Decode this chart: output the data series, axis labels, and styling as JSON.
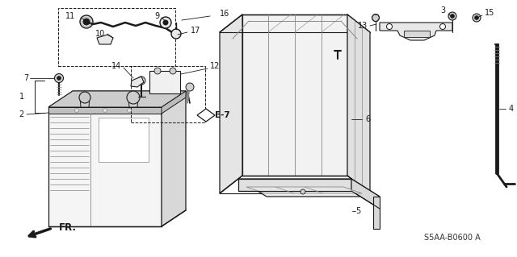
{
  "bg_color": "#ffffff",
  "dark": "#1a1a1a",
  "mid": "#888888",
  "light": "#cccccc",
  "label_E7": "E-7",
  "footer_code": "S5AA-B0600 A",
  "fr_label": "FR.",
  "figsize": [
    6.4,
    3.19
  ],
  "dpi": 100
}
